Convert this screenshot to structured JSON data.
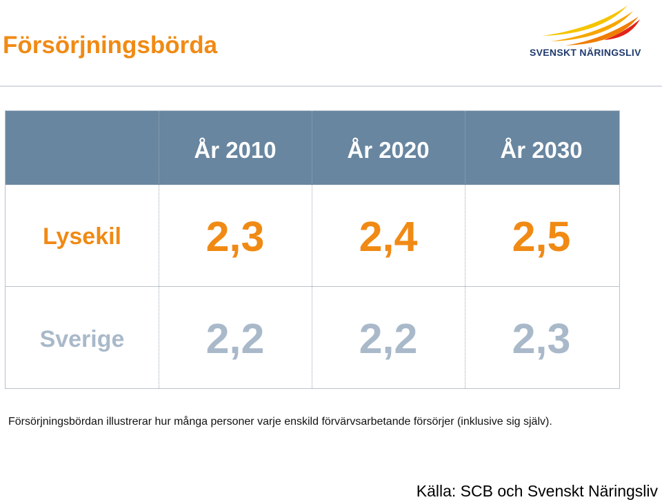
{
  "title": "Försörjningsbörda",
  "logo": {
    "text": "SVENSKT NÄRINGSLIV"
  },
  "colors": {
    "orange": "#f08a14",
    "header": "#6886a0",
    "grey_blue": "#a9b9ca",
    "white": "#ffffff"
  },
  "chart_data": {
    "type": "table",
    "columns": [
      "År 2010",
      "År 2020",
      "År 2030"
    ],
    "rows": [
      {
        "label": "Lysekil",
        "values": [
          "2,3",
          "2,4",
          "2,5"
        ]
      },
      {
        "label": "Sverige",
        "values": [
          "2,2",
          "2,2",
          "2,3"
        ]
      }
    ]
  },
  "note": "Försörjningsbördan illustrerar hur många personer varje enskild förvärvsarbetande försörjer (inklusive sig själv).",
  "source": "Källa: SCB och Svenskt Näringsliv"
}
